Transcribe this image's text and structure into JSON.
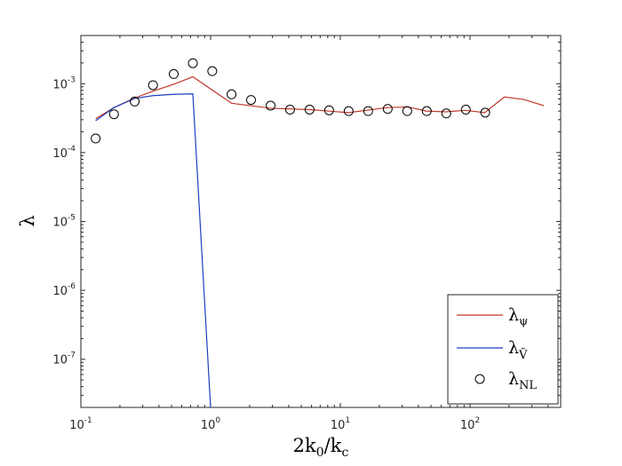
{
  "chart_data": {
    "type": "line",
    "xscale": "log",
    "yscale": "log",
    "xlim": [
      0.1,
      500
    ],
    "ylim": [
      2e-08,
      0.005
    ],
    "xlabel": {
      "main": "2k",
      "sub0": "0",
      "mid": "/k",
      "sub1": "c"
    },
    "ylabel": "λ",
    "xticks": [
      {
        "value": 0.1,
        "base": "10",
        "exp": "-1"
      },
      {
        "value": 1,
        "base": "10",
        "exp": "0"
      },
      {
        "value": 10,
        "base": "10",
        "exp": "1"
      },
      {
        "value": 100,
        "base": "10",
        "exp": "2"
      }
    ],
    "yticks": [
      {
        "value": 1e-07,
        "base": "10",
        "exp": "-7"
      },
      {
        "value": 1e-06,
        "base": "10",
        "exp": "-6"
      },
      {
        "value": 1e-05,
        "base": "10",
        "exp": "-5"
      },
      {
        "value": 0.0001,
        "base": "10",
        "exp": "-4"
      },
      {
        "value": 0.001,
        "base": "10",
        "exp": "-3"
      }
    ],
    "legend_position": "bottom-right",
    "series": [
      {
        "name": "λψ",
        "legend": {
          "base": "λ",
          "sub": "ψ"
        },
        "kind": "line",
        "color": "#c0392b",
        "x": [
          0.13,
          0.18,
          0.26,
          0.36,
          0.52,
          0.73,
          1.45,
          2.9,
          5.8,
          11.6,
          23,
          33,
          46,
          65,
          92,
          130,
          184,
          260,
          370
        ],
        "y": [
          0.00031,
          0.00045,
          0.00062,
          0.00078,
          0.00098,
          0.00126,
          0.00052,
          0.00044,
          0.00042,
          0.00038,
          0.00045,
          0.00046,
          0.0004,
          0.00039,
          0.00041,
          0.00038,
          0.00064,
          0.00059,
          0.00048
        ]
      },
      {
        "name": "λV",
        "legend": {
          "base": "λ",
          "sub": "Ṽ"
        },
        "kind": "line",
        "color": "#1f3fbf",
        "x": [
          0.13,
          0.18,
          0.26,
          0.36,
          0.52,
          0.73,
          1.0
        ],
        "y": [
          0.00029,
          0.00045,
          0.00061,
          0.00067,
          0.0007,
          0.00071,
          2e-08
        ]
      },
      {
        "name": "λNL",
        "legend": {
          "base": "λ",
          "sub": "NL"
        },
        "kind": "scatter",
        "color": "#000000",
        "x": [
          0.13,
          0.18,
          0.26,
          0.36,
          0.52,
          0.73,
          1.03,
          1.45,
          2.05,
          2.9,
          4.1,
          5.8,
          8.2,
          11.6,
          16.4,
          23.2,
          32.8,
          46.4,
          65.6,
          92.8,
          131
        ],
        "y": [
          0.00016,
          0.00036,
          0.00055,
          0.00095,
          0.00138,
          0.00198,
          0.00152,
          0.0007,
          0.00058,
          0.00048,
          0.00042,
          0.00042,
          0.00041,
          0.0004,
          0.0004,
          0.00043,
          0.0004,
          0.0004,
          0.00037,
          0.00042,
          0.00038
        ]
      }
    ]
  }
}
